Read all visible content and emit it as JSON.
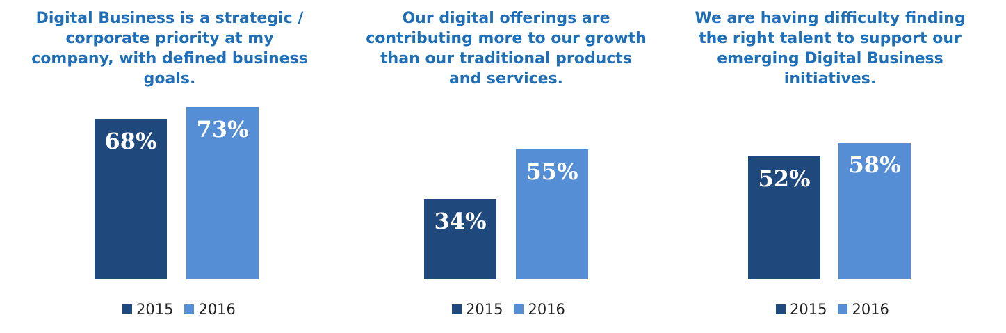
{
  "chart_data": [
    {
      "type": "bar",
      "title": "Digital Business is a strategic / corporate priority at my company, with defined business goals.",
      "categories": [
        "2015",
        "2016"
      ],
      "values": [
        68,
        73
      ],
      "value_labels": [
        "68%",
        "73%"
      ],
      "colors": [
        "#1f497d",
        "#558ed5"
      ],
      "legend": [
        "2015",
        "2016"
      ],
      "legend_position": "bottom",
      "grid": false,
      "ylim": [
        0,
        100
      ]
    },
    {
      "type": "bar",
      "title": "Our digital offerings are contributing more to our growth than our traditional products and services.",
      "categories": [
        "2015",
        "2016"
      ],
      "values": [
        34,
        55
      ],
      "value_labels": [
        "34%",
        "55%"
      ],
      "colors": [
        "#1f497d",
        "#558ed5"
      ],
      "legend": [
        "2015",
        "2016"
      ],
      "legend_position": "bottom",
      "grid": false,
      "ylim": [
        0,
        100
      ]
    },
    {
      "type": "bar",
      "title": "We are having difficulty finding the right talent to support our emerging Digital Business initiatives.",
      "categories": [
        "2015",
        "2016"
      ],
      "values": [
        52,
        58
      ],
      "value_labels": [
        "52%",
        "58%"
      ],
      "colors": [
        "#1f497d",
        "#558ed5"
      ],
      "legend": [
        "2015",
        "2016"
      ],
      "legend_position": "bottom",
      "grid": false,
      "ylim": [
        0,
        100
      ]
    }
  ],
  "panels": [
    {
      "title_lines": [
        "Digital Business is a strategic /",
        "corporate priority at my",
        "company, with defined business",
        "goals."
      ]
    },
    {
      "title_lines": [
        "Our digital offerings are",
        "contributing more to our growth",
        "than our traditional products",
        "and services."
      ]
    },
    {
      "title_lines": [
        "We are having difficulty finding",
        "the right talent to support our",
        "emerging Digital Business",
        "initiatives."
      ]
    }
  ]
}
